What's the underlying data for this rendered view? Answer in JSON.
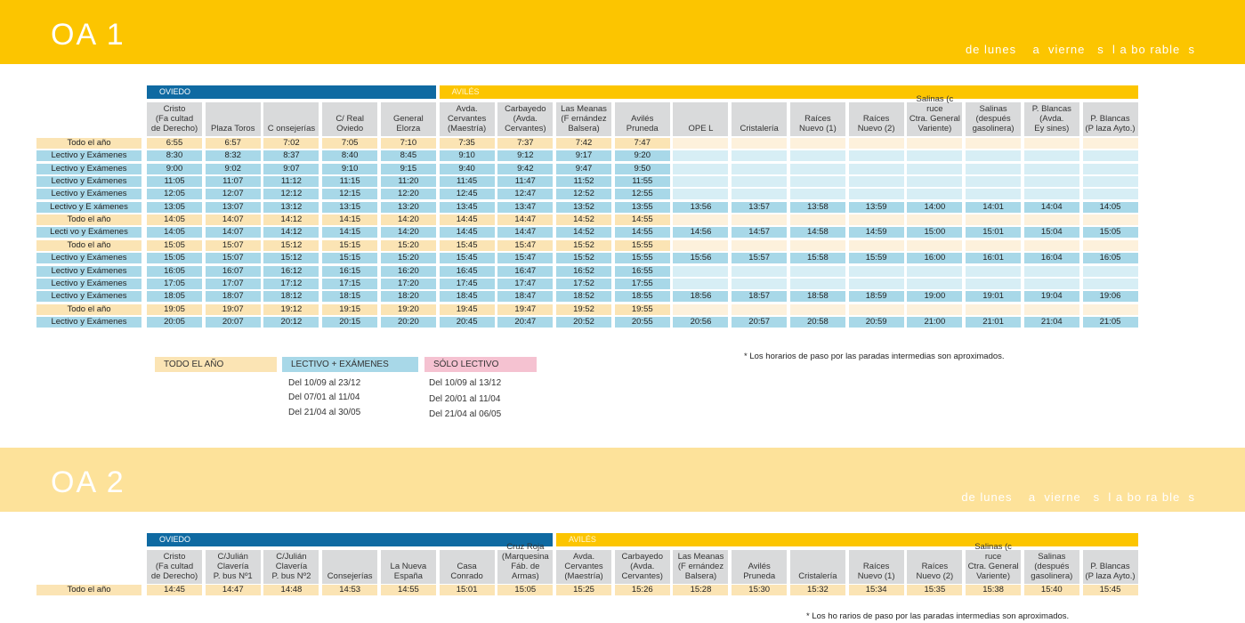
{
  "colors": {
    "band1": "#fcc500",
    "band2": "#fde29a",
    "oviedo": "#0f6aa2",
    "aviles": "#fcc500",
    "aviles2": "#fdc61a",
    "row_all": "#fbe4b4",
    "row_lect": "#a8d8e8",
    "row_all_empty": "#fdf1dc",
    "row_lect_empty": "#d7eef5",
    "solo": "#f5c2d1"
  },
  "oa1": {
    "title": "OA 1",
    "subtitle": "de lunes    a  vierne   s  l a bo rable  s",
    "oviedo_label": "OVIEDO",
    "aviles_label": "AVILÉS",
    "columns": [
      "Cristo\n(Fa cultad\nde Derecho)",
      "Plaza Toros",
      "C onsejerías",
      "C/ Real\nOviedo",
      "General\nElorza",
      "Avda.\nCervantes\n(Maestría)",
      "Carbayedo\n(Avda.\nCervantes)",
      "Las Meanas\n(F ernández\nBalsera)",
      "Avilés\nPruneda",
      "OPE L",
      "Cristalería",
      "Raíces\nNuevo (1)",
      "Raíces\nNuevo (2)",
      "Salinas (c ruce\nCtra. General\nVariente)",
      "Salinas\n(después\ngasolinera)",
      "P. Blancas\n(Avda.\nEy sines)",
      "P. Blancas\n(P laza Ayto.)"
    ],
    "rows": [
      {
        "label": "Todo el año",
        "type": "all",
        "times": [
          "6:55",
          "6:57",
          "7:02",
          "7:05",
          "7:10",
          "7:35",
          "7:37",
          "7:42",
          "7:47",
          "",
          "",
          "",
          "",
          "",
          "",
          "",
          ""
        ]
      },
      {
        "label": "Lectivo y Exámenes",
        "type": "lect",
        "times": [
          "8:30",
          "8:32",
          "8:37",
          "8:40",
          "8:45",
          "9:10",
          "9:12",
          "9:17",
          "9:20",
          "",
          "",
          "",
          "",
          "",
          "",
          "",
          ""
        ]
      },
      {
        "label": "Lectivo y Exámenes",
        "type": "lect",
        "times": [
          "9:00",
          "9:02",
          "9:07",
          "9:10",
          "9:15",
          "9:40",
          "9:42",
          "9:47",
          "9:50",
          "",
          "",
          "",
          "",
          "",
          "",
          "",
          ""
        ]
      },
      {
        "label": "Lectivo y Exámenes",
        "type": "lect",
        "times": [
          "11:05",
          "11:07",
          "11:12",
          "11:15",
          "11:20",
          "11:45",
          "11:47",
          "11:52",
          "11:55",
          "",
          "",
          "",
          "",
          "",
          "",
          "",
          ""
        ]
      },
      {
        "label": "Lectivo y Exámenes",
        "type": "lect",
        "times": [
          "12:05",
          "12:07",
          "12:12",
          "12:15",
          "12:20",
          "12:45",
          "12:47",
          "12:52",
          "12:55",
          "",
          "",
          "",
          "",
          "",
          "",
          "",
          ""
        ]
      },
      {
        "label": "Lectivo y E     xámenes",
        "type": "lect",
        "times": [
          "13:05",
          "13:07",
          "13:12",
          "13:15",
          "13:20",
          "13:45",
          "13:47",
          "13:52",
          "13:55",
          "13:56",
          "13:57",
          "13:58",
          "13:59",
          "14:00",
          "14:01",
          "14:04",
          "14:05"
        ]
      },
      {
        "label": "Todo el año",
        "type": "all",
        "times": [
          "14:05",
          "14:07",
          "14:12",
          "14:15",
          "14:20",
          "14:45",
          "14:47",
          "14:52",
          "14:55",
          "",
          "",
          "",
          "",
          "",
          "",
          "",
          ""
        ]
      },
      {
        "label": "Lecti  vo y Exámenes",
        "type": "lect",
        "times": [
          "14:05",
          "14:07",
          "14:12",
          "14:15",
          "14:20",
          "14:45",
          "14:47",
          "14:52",
          "14:55",
          "14:56",
          "14:57",
          "14:58",
          "14:59",
          "15:00",
          "15:01",
          "15:04",
          "15:05"
        ]
      },
      {
        "label": "Todo el año",
        "type": "all",
        "times": [
          "15:05",
          "15:07",
          "15:12",
          "15:15",
          "15:20",
          "15:45",
          "15:47",
          "15:52",
          "15:55",
          "",
          "",
          "",
          "",
          "",
          "",
          "",
          ""
        ]
      },
      {
        "label": "Lectivo y Exámenes",
        "type": "lect",
        "times": [
          "15:05",
          "15:07",
          "15:12",
          "15:15",
          "15:20",
          "15:45",
          "15:47",
          "15:52",
          "15:55",
          "15:56",
          "15:57",
          "15:58",
          "15:59",
          "16:00",
          "16:01",
          "16:04",
          "16:05"
        ]
      },
      {
        "label": "Lectivo y Exámenes",
        "type": "lect",
        "times": [
          "16:05",
          "16:07",
          "16:12",
          "16:15",
          "16:20",
          "16:45",
          "16:47",
          "16:52",
          "16:55",
          "",
          "",
          "",
          "",
          "",
          "",
          "",
          ""
        ]
      },
      {
        "label": "Lectivo y Exámenes",
        "type": "lect",
        "times": [
          "17:05",
          "17:07",
          "17:12",
          "17:15",
          "17:20",
          "17:45",
          "17:47",
          "17:52",
          "17:55",
          "",
          "",
          "",
          "",
          "",
          "",
          "",
          ""
        ]
      },
      {
        "label": "Lectivo y Exámenes",
        "type": "lect",
        "times": [
          "18:05",
          "18:07",
          "18:12",
          "18:15",
          "18:20",
          "18:45",
          "18:47",
          "18:52",
          "18:55",
          "18:56",
          "18:57",
          "18:58",
          "18:59",
          "19:00",
          "19:01",
          "19:04",
          "19:06"
        ]
      },
      {
        "label": "Todo el año",
        "type": "all",
        "times": [
          "19:05",
          "19:07",
          "19:12",
          "19:15",
          "19:20",
          "19:45",
          "19:47",
          "19:52",
          "19:55",
          "",
          "",
          "",
          "",
          "",
          "",
          "",
          ""
        ]
      },
      {
        "label": "Lectivo y Exámenes",
        "type": "lect",
        "times": [
          "20:05",
          "20:07",
          "20:12",
          "20:15",
          "20:20",
          "20:45",
          "20:47",
          "20:52",
          "20:55",
          "20:56",
          "20:57",
          "20:58",
          "20:59",
          "21:00",
          "21:01",
          "21:04",
          "21:05"
        ]
      }
    ],
    "legend": {
      "todo": "TODO EL AÑO",
      "lectivo": "LECTIVO + EXÁMENES",
      "solo": "SÓLO LECTIVO",
      "lectivo_dates": [
        "Del 10/09 al 23/12",
        "Del 07/01 al 11/04",
        "Del 21/04 al 30/05"
      ],
      "solo_dates": [
        "Del 10/09 al 13/12",
        "Del 20/01 al 11/04",
        "Del 21/04 al 06/05"
      ]
    },
    "note": "*  Los horarios de paso por las paradas intermedias son aproximados."
  },
  "oa2": {
    "title": "OA 2",
    "subtitle": "de lunes    a  vierne   s  l a bo ra ble  s",
    "oviedo_label": "OVIEDO",
    "aviles_label": "AVILÉS",
    "columns": [
      "Cristo\n(Fa cultad\nde Derecho)",
      "C/Julián\nClavería\nP. bus Nº1",
      "C/Julián\nClavería\nP. bus Nº2",
      "Consejerías",
      "La Nueva\nEspaña",
      "Casa\nConrado",
      "Cruz Roja\n(Marquesina\nFáb. de Armas)",
      "Avda.\nCervantes\n(Maestría)",
      "Carbayedo\n(Avda.\nCervantes)",
      "Las Meanas\n(F ernández\nBalsera)",
      "Avilés\nPruneda",
      "Cristalería",
      "Raíces\nNuevo (1)",
      "Raíces\nNuevo (2)",
      "Salinas (c ruce\nCtra. General\nVariente)",
      "Salinas\n(después\ngasolinera)",
      "P. Blancas\n(P laza Ayto.)"
    ],
    "rows": [
      {
        "label": "Todo el año",
        "type": "all",
        "times": [
          "14:45",
          "14:47",
          "14:48",
          "14:53",
          "14:55",
          "15:01",
          "15:05",
          "15:25",
          "15:26",
          "15:28",
          "15:30",
          "15:32",
          "15:34",
          "15:35",
          "15:38",
          "15:40",
          "15:45"
        ]
      }
    ],
    "note": "*  Los ho   rarios de paso por las paradas intermedias son aproximados."
  }
}
